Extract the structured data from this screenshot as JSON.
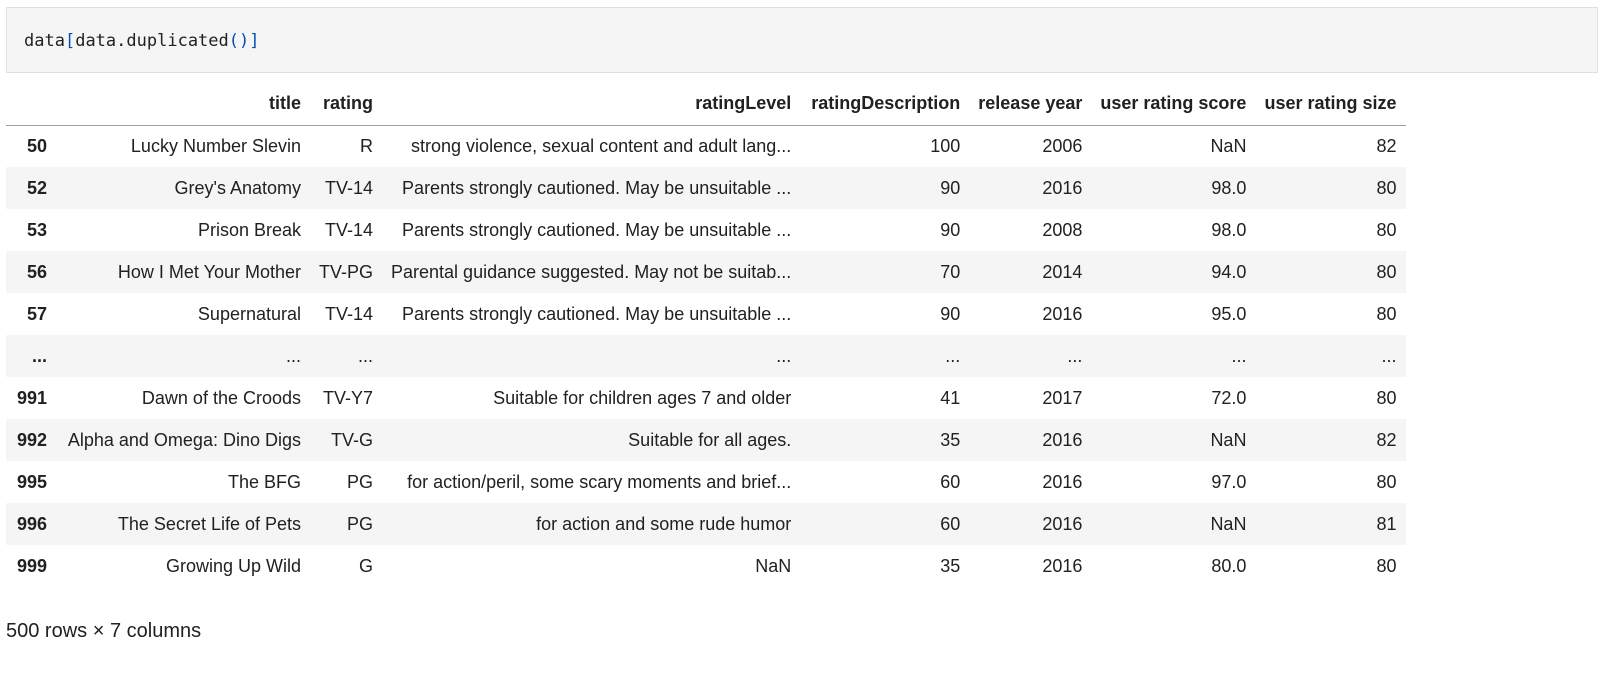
{
  "code_cell": {
    "tokens": [
      "data",
      "[",
      "data",
      ".",
      "duplicated",
      "()",
      "]"
    ]
  },
  "table": {
    "columns": [
      "",
      "title",
      "rating",
      "ratingLevel",
      "ratingDescription",
      "release year",
      "user rating score",
      "user rating size"
    ],
    "rows": [
      [
        "50",
        "Lucky Number Slevin",
        "R",
        "strong violence, sexual content and adult lang...",
        "100",
        "2006",
        "NaN",
        "82"
      ],
      [
        "52",
        "Grey's Anatomy",
        "TV-14",
        "Parents strongly cautioned. May be unsuitable ...",
        "90",
        "2016",
        "98.0",
        "80"
      ],
      [
        "53",
        "Prison Break",
        "TV-14",
        "Parents strongly cautioned. May be unsuitable ...",
        "90",
        "2008",
        "98.0",
        "80"
      ],
      [
        "56",
        "How I Met Your Mother",
        "TV-PG",
        "Parental guidance suggested. May not be suitab...",
        "70",
        "2014",
        "94.0",
        "80"
      ],
      [
        "57",
        "Supernatural",
        "TV-14",
        "Parents strongly cautioned. May be unsuitable ...",
        "90",
        "2016",
        "95.0",
        "80"
      ],
      [
        "...",
        "...",
        "...",
        "...",
        "...",
        "...",
        "...",
        "..."
      ],
      [
        "991",
        "Dawn of the Croods",
        "TV-Y7",
        "Suitable for children ages 7 and older",
        "41",
        "2017",
        "72.0",
        "80"
      ],
      [
        "992",
        "Alpha and Omega: Dino Digs",
        "TV-G",
        "Suitable for all ages.",
        "35",
        "2016",
        "NaN",
        "82"
      ],
      [
        "995",
        "The BFG",
        "PG",
        "for action/peril, some scary moments and brief...",
        "60",
        "2016",
        "97.0",
        "80"
      ],
      [
        "996",
        "The Secret Life of Pets",
        "PG",
        "for action and some rude humor",
        "60",
        "2016",
        "NaN",
        "81"
      ],
      [
        "999",
        "Growing Up Wild",
        "G",
        "NaN",
        "35",
        "2016",
        "80.0",
        "80"
      ]
    ]
  },
  "shape_note": "500 rows × 7 columns"
}
